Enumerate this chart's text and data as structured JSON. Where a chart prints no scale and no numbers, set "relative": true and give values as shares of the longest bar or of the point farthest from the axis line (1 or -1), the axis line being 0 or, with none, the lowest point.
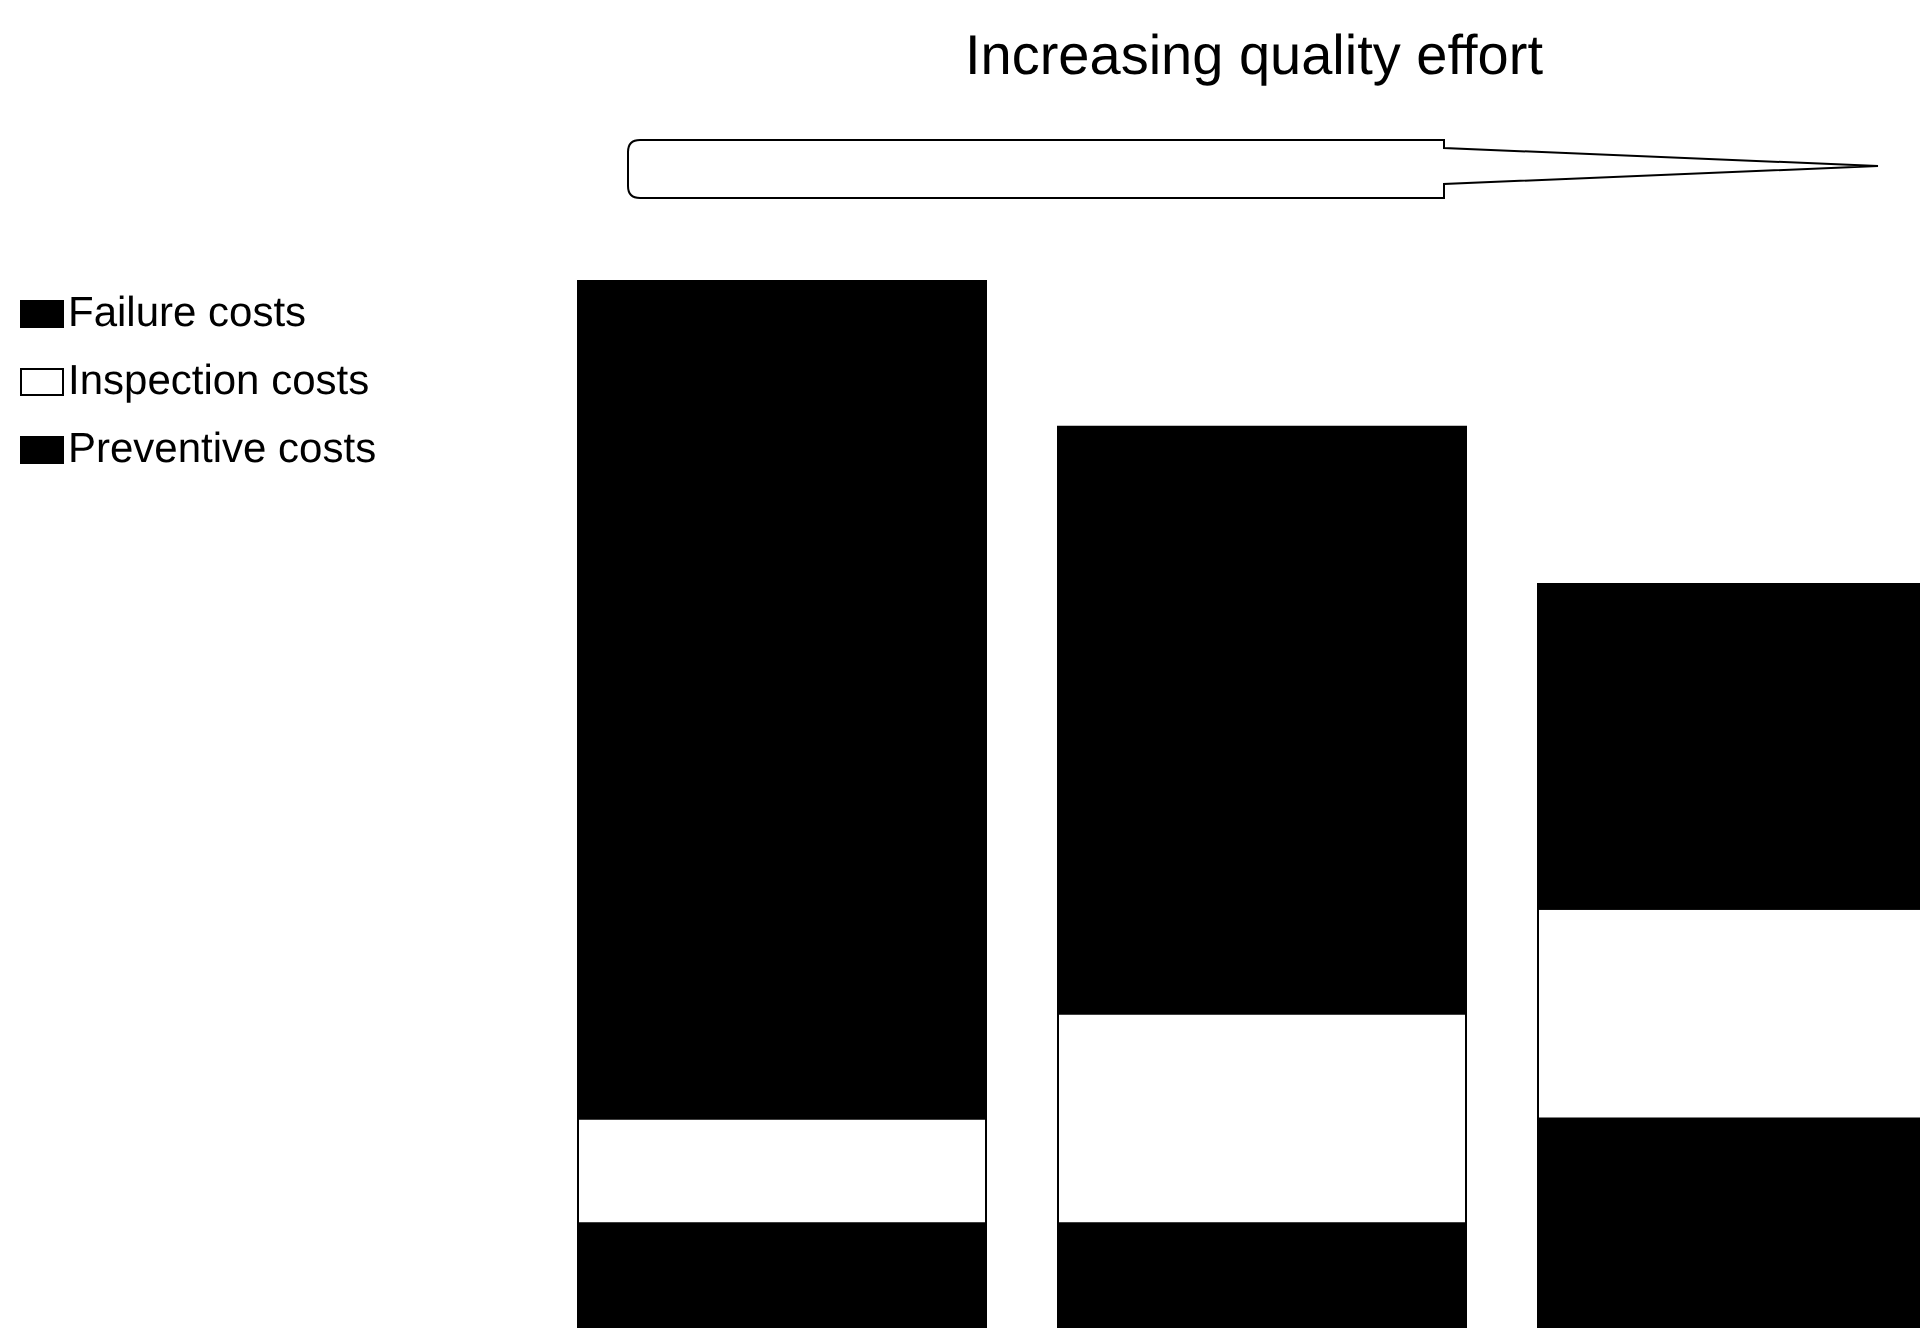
{
  "chart_data": {
    "type": "bar",
    "title": "Increasing quality effort",
    "relative": true,
    "stacked": true,
    "legend": "top left",
    "categories": [
      null,
      null,
      null
    ],
    "series": [
      {
        "name": "Preventive costs",
        "color": "#000000",
        "values": [
          0.1,
          0.1,
          0.2
        ]
      },
      {
        "name": "Inspection costs",
        "color": "#ffffff",
        "values": [
          0.1,
          0.2,
          0.2
        ]
      },
      {
        "name": "Failure costs",
        "color": "#000000",
        "values": [
          0.8,
          0.56,
          0.31
        ]
      }
    ]
  }
}
